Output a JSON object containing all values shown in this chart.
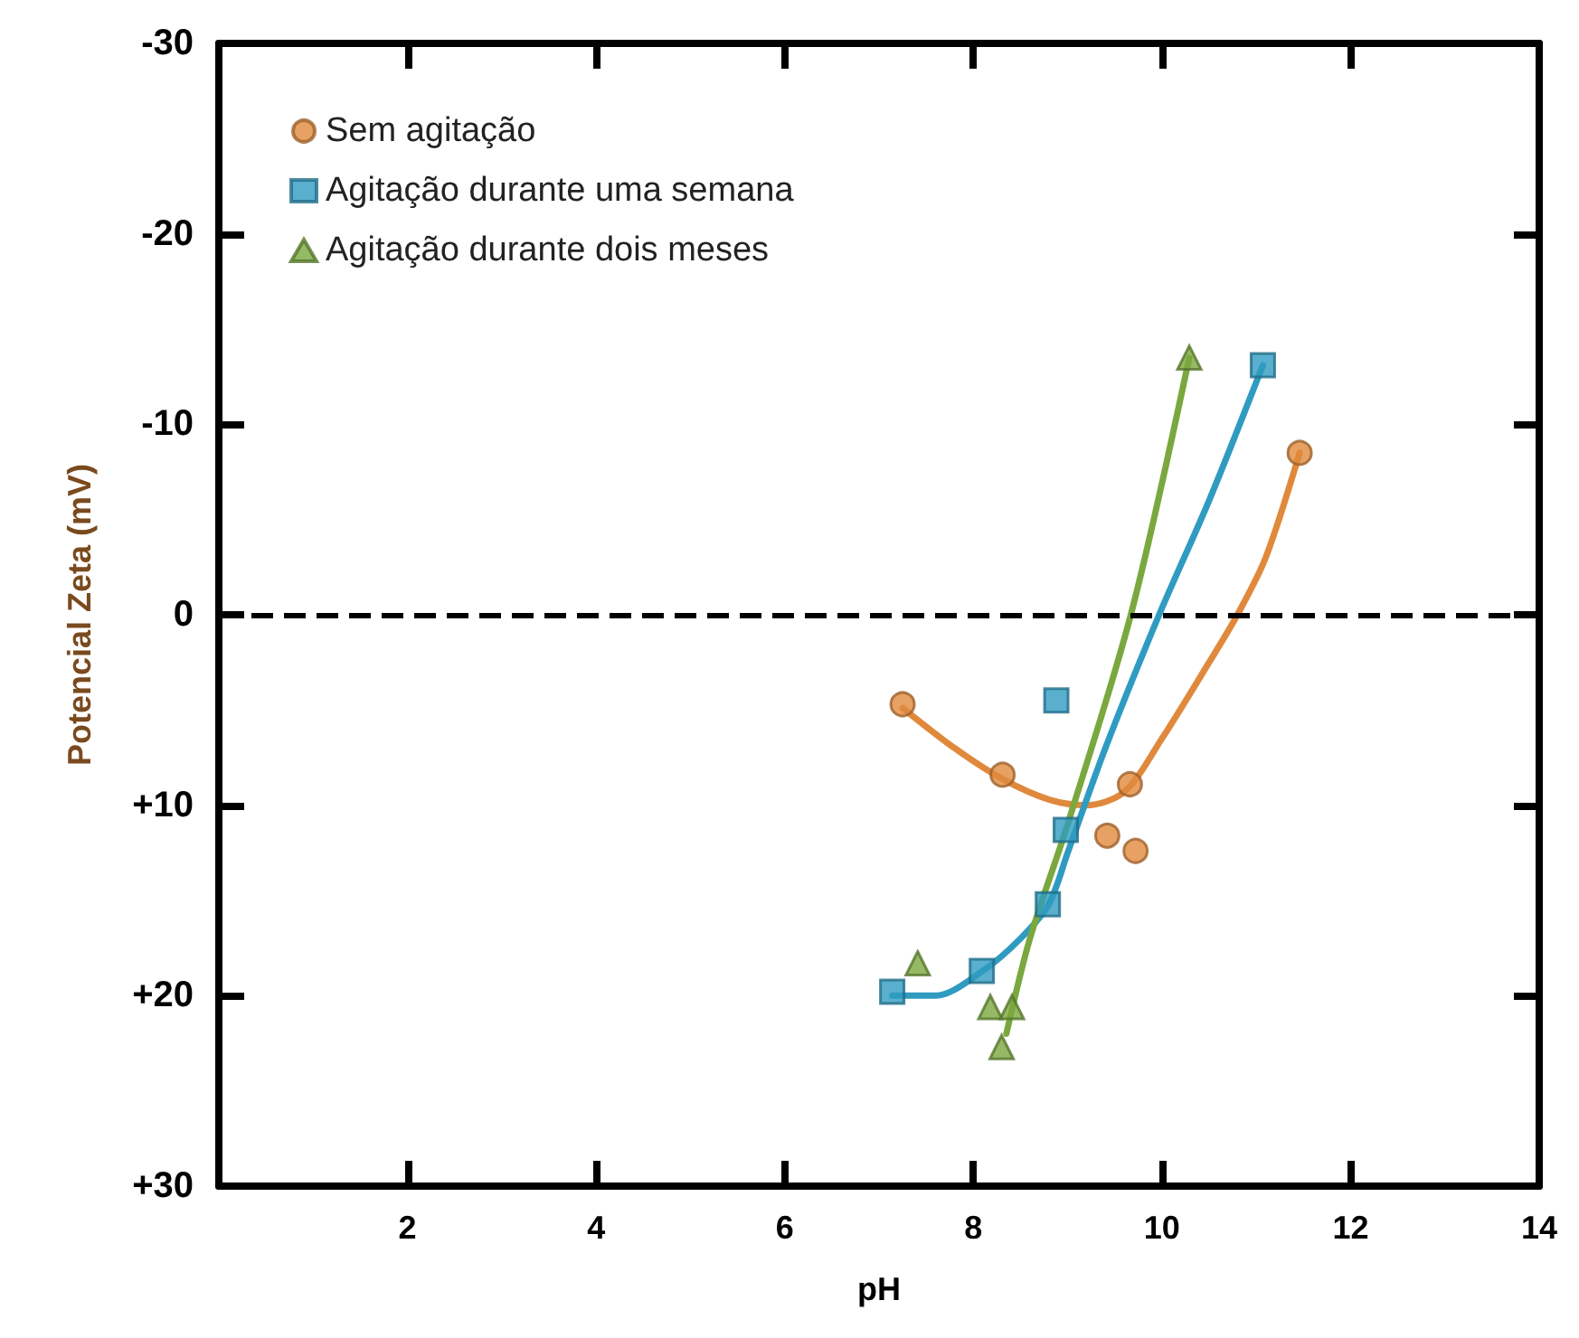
{
  "chart_data": {
    "type": "scatter",
    "xlabel": "pH",
    "ylabel": "Potencial Zeta (mV)",
    "xlim": [
      0,
      14
    ],
    "xticks": [
      2,
      4,
      6,
      8,
      10,
      12,
      14
    ],
    "ylim": [
      30,
      -30
    ],
    "yticks": [
      -30,
      -20,
      -10,
      0,
      {
        "value": 10,
        "label": "+10"
      },
      {
        "value": 20,
        "label": "+20"
      },
      {
        "value": 30,
        "label": "+30"
      }
    ],
    "grid": false,
    "legend": "top left",
    "ref_lines": [
      {
        "axis": "y",
        "value": 0,
        "color": "#000000",
        "line_style": "dashed"
      }
    ],
    "series": [
      {
        "name": "Sem agitação",
        "marker": "circle",
        "color": "#e0893c",
        "x": [
          7.25,
          8.31,
          9.66,
          9.42,
          9.72,
          11.46
        ],
        "values": [
          4.7,
          8.4,
          8.9,
          11.6,
          12.4,
          -8.5
        ]
      },
      {
        "name": "Agitação durante uma semana",
        "marker": "square",
        "color": "#2f9bc1",
        "x": [
          7.14,
          8.09,
          8.79,
          8.98,
          8.88,
          11.07
        ],
        "values": [
          19.8,
          18.7,
          15.2,
          11.3,
          4.5,
          -13.1
        ]
      },
      {
        "name": "Agitação durante dois meses",
        "marker": "triangle",
        "color": "#7aa83f",
        "x": [
          7.41,
          8.18,
          8.41,
          8.3,
          10.29
        ],
        "values": [
          18.3,
          20.6,
          20.6,
          22.7,
          -13.5
        ]
      },
      {
        "type": "line",
        "marker": "none",
        "line_style": "solid",
        "color": "#e0893c",
        "x": [
          7.25,
          7.8,
          8.3,
          8.8,
          9.2,
          9.6,
          10.0,
          10.5,
          10.8,
          11.1,
          11.46
        ],
        "values": [
          4.9,
          7.0,
          8.6,
          9.7,
          10.0,
          9.3,
          6.5,
          2.5,
          0,
          -3,
          -8.5
        ]
      },
      {
        "type": "line",
        "marker": "none",
        "line_style": "solid",
        "color": "#2f9bc1",
        "x": [
          7.14,
          7.6,
          8.1,
          8.5,
          8.8,
          9.0,
          9.4,
          9.97,
          10.5,
          11.07
        ],
        "values": [
          20,
          20,
          18.7,
          17,
          15.2,
          12.5,
          7,
          0,
          -6,
          -13.1
        ]
      },
      {
        "type": "line",
        "marker": "none",
        "line_style": "solid",
        "color": "#7aa83f",
        "x": [
          8.35,
          8.6,
          9.0,
          9.67,
          10.29
        ],
        "values": [
          22,
          17,
          11,
          0,
          -13.5
        ]
      }
    ]
  }
}
